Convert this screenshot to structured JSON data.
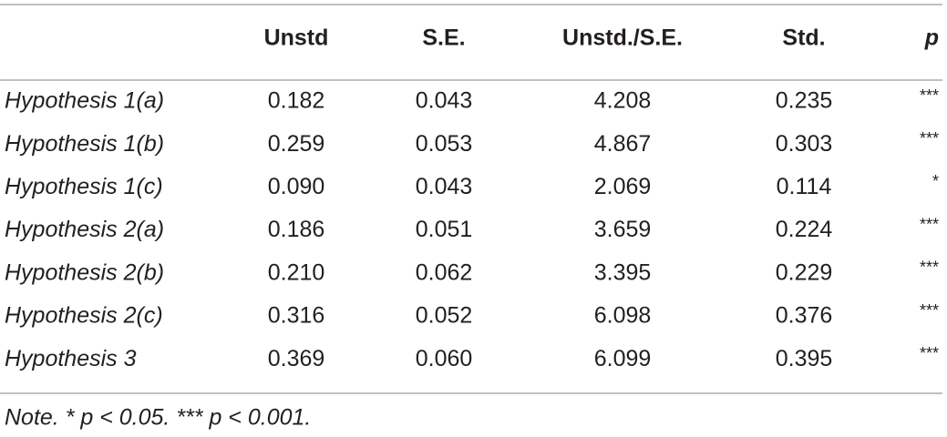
{
  "table": {
    "header": [
      "Unstd",
      "S.E.",
      "Unstd./S.E.",
      "Std.",
      "p"
    ],
    "rows": [
      [
        "Hypothesis 1(a)",
        "0.182",
        "0.043",
        "4.208",
        "0.235",
        "***"
      ],
      [
        "Hypothesis 1(b)",
        "0.259",
        "0.053",
        "4.867",
        "0.303",
        "***"
      ],
      [
        "Hypothesis 1(c)",
        "0.090",
        "0.043",
        "2.069",
        "0.114",
        "*"
      ],
      [
        "Hypothesis 2(a)",
        "0.186",
        "0.051",
        "3.659",
        "0.224",
        "***"
      ],
      [
        "Hypothesis 2(b)",
        "0.210",
        "0.062",
        "3.395",
        "0.229",
        "***"
      ],
      [
        "Hypothesis 2(c)",
        "0.316",
        "0.052",
        "6.098",
        "0.376",
        "***"
      ],
      [
        "Hypothesis 3",
        "0.369",
        "0.060",
        "6.099",
        "0.395",
        "***"
      ]
    ],
    "note": "Note. * p < 0.05. *** p < 0.001."
  }
}
